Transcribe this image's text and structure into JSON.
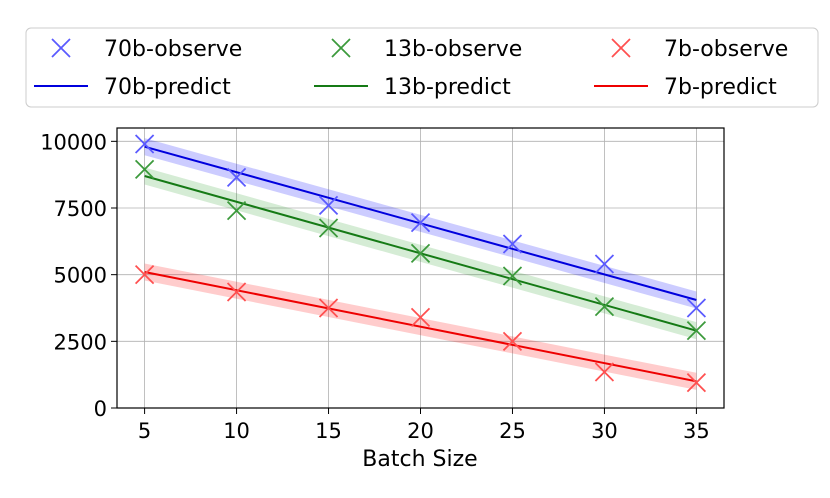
{
  "chart_data": {
    "type": "scatter",
    "title": "",
    "xlabel": "Batch Size",
    "ylabel": "",
    "xlim": [
      3.5,
      36.5
    ],
    "ylim": [
      0,
      10500
    ],
    "xticks": [
      5,
      10,
      15,
      20,
      25,
      30,
      35
    ],
    "yticks": [
      0,
      2500,
      5000,
      7500,
      10000
    ],
    "grid": true,
    "legend_position": "top",
    "band_halfwidth": 320,
    "series": [
      {
        "name": "70b-observe",
        "kind": "scatter",
        "marker": "x",
        "color": "#5a5aff",
        "x": [
          5,
          10,
          15,
          20,
          25,
          30,
          35
        ],
        "y": [
          9900,
          8650,
          7600,
          6950,
          6150,
          5400,
          3750
        ]
      },
      {
        "name": "70b-predict",
        "kind": "line",
        "color": "#0000dd",
        "band_color": "#0000ff",
        "x": [
          5,
          35
        ],
        "y": [
          9800,
          4050
        ]
      },
      {
        "name": "13b-observe",
        "kind": "scatter",
        "marker": "x",
        "color": "#3c9a3c",
        "x": [
          5,
          10,
          15,
          20,
          25,
          30,
          35
        ],
        "y": [
          8950,
          7400,
          6750,
          5800,
          4950,
          3800,
          2900
        ]
      },
      {
        "name": "13b-predict",
        "kind": "line",
        "color": "#157a15",
        "band_color": "#2ca02c",
        "x": [
          5,
          35
        ],
        "y": [
          8700,
          2900
        ]
      },
      {
        "name": "7b-observe",
        "kind": "scatter",
        "marker": "x",
        "color": "#ff5050",
        "x": [
          5,
          10,
          15,
          20,
          25,
          30,
          35
        ],
        "y": [
          5000,
          4350,
          3750,
          3400,
          2500,
          1350,
          950
        ]
      },
      {
        "name": "7b-predict",
        "kind": "line",
        "color": "#ee0000",
        "band_color": "#ff0000",
        "x": [
          5,
          35
        ],
        "y": [
          5100,
          1000
        ]
      }
    ]
  }
}
